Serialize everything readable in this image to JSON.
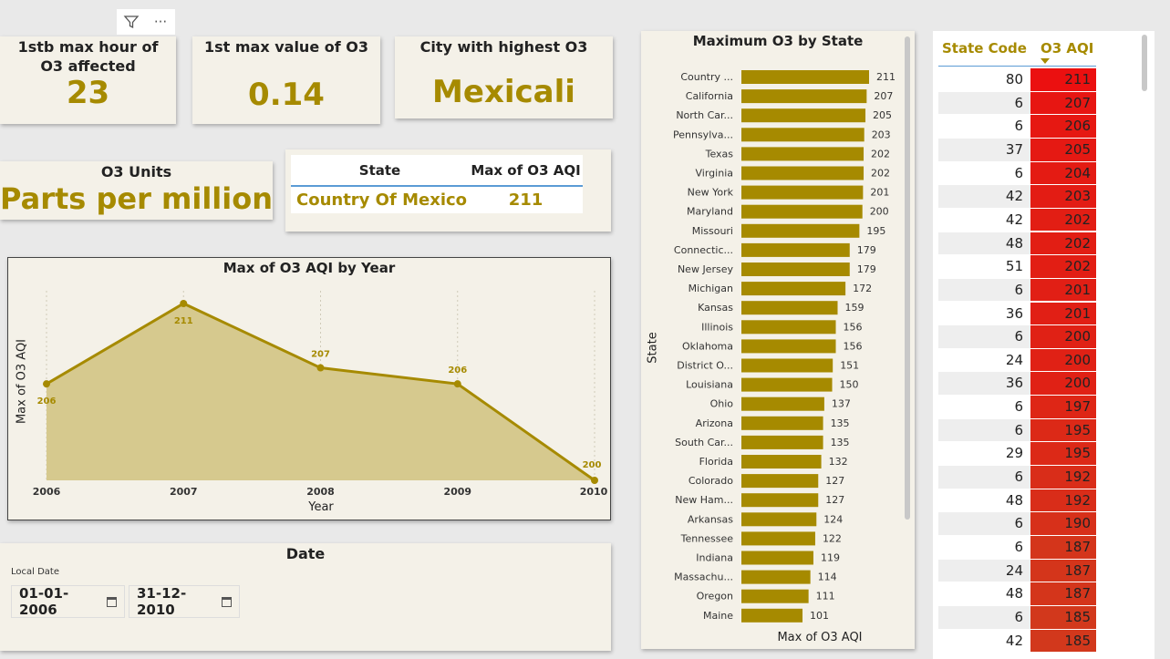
{
  "toolbar": {
    "filter_icon": "filter-icon",
    "more_icon": "more-options-icon",
    "more_glyph": "···"
  },
  "kpis": [
    {
      "label": "1stb max hour of O3 affected",
      "value": "23"
    },
    {
      "label": "1st max value of O3",
      "value": "0.14"
    },
    {
      "label": "City with highest O3",
      "value": "Mexicali"
    }
  ],
  "units_card": {
    "label": "O3 Units",
    "value": "Parts per million"
  },
  "state_table": {
    "headers": [
      "State",
      "Max of O3 AQI"
    ],
    "rows": [
      {
        "state": "Country Of Mexico",
        "value": "211"
      }
    ]
  },
  "line_chart": {
    "title": "Max of O3 AQI by Year",
    "xlabel": "Year",
    "ylabel": "Max of O3 AQI"
  },
  "bar_chart": {
    "title": "Maximum O3 by State",
    "ylabel": "State",
    "xlabel": "Max of O3 AQI"
  },
  "chart_data": [
    {
      "type": "area",
      "title": "Max of O3 AQI by Year",
      "xlabel": "Year",
      "ylabel": "Max of O3 AQI",
      "x": [
        "2006",
        "2007",
        "2008",
        "2009",
        "2010"
      ],
      "values": [
        206,
        211,
        207,
        206,
        200
      ],
      "ylim": [
        200,
        211
      ],
      "grid": true,
      "color": "#a68a00"
    },
    {
      "type": "bar",
      "orientation": "horizontal",
      "title": "Maximum O3 by State",
      "xlabel": "Max of O3 AQI",
      "ylabel": "State",
      "categories": [
        "Country ...",
        "California",
        "North Car...",
        "Pennsylva...",
        "Texas",
        "Virginia",
        "New York",
        "Maryland",
        "Missouri",
        "Connectic...",
        "New Jersey",
        "Michigan",
        "Kansas",
        "Illinois",
        "Oklahoma",
        "District O...",
        "Louisiana",
        "Ohio",
        "Arizona",
        "South Car...",
        "Florida",
        "Colorado",
        "New Ham...",
        "Arkansas",
        "Tennessee",
        "Indiana",
        "Massachu...",
        "Oregon",
        "Maine"
      ],
      "values": [
        211,
        207,
        205,
        203,
        202,
        202,
        201,
        200,
        195,
        179,
        179,
        172,
        159,
        156,
        156,
        151,
        150,
        137,
        135,
        135,
        132,
        127,
        127,
        124,
        122,
        119,
        114,
        111,
        101
      ],
      "xlim": [
        0,
        211
      ],
      "color": "#a68a00"
    }
  ],
  "right_table": {
    "headers": [
      "State Code",
      "O3 AQI"
    ],
    "rows": [
      [
        "80",
        "211"
      ],
      [
        "6",
        "207"
      ],
      [
        "6",
        "206"
      ],
      [
        "37",
        "205"
      ],
      [
        "6",
        "204"
      ],
      [
        "42",
        "203"
      ],
      [
        "42",
        "202"
      ],
      [
        "48",
        "202"
      ],
      [
        "51",
        "202"
      ],
      [
        "6",
        "201"
      ],
      [
        "36",
        "201"
      ],
      [
        "6",
        "200"
      ],
      [
        "24",
        "200"
      ],
      [
        "36",
        "200"
      ],
      [
        "6",
        "197"
      ],
      [
        "6",
        "195"
      ],
      [
        "29",
        "195"
      ],
      [
        "6",
        "192"
      ],
      [
        "48",
        "192"
      ],
      [
        "6",
        "190"
      ],
      [
        "6",
        "187"
      ],
      [
        "24",
        "187"
      ],
      [
        "48",
        "187"
      ],
      [
        "6",
        "185"
      ],
      [
        "42",
        "185"
      ]
    ]
  },
  "date_slicer": {
    "title": "Date",
    "field_label": "Local Date",
    "start": "01-01-2006",
    "end": "31-12-2010"
  }
}
